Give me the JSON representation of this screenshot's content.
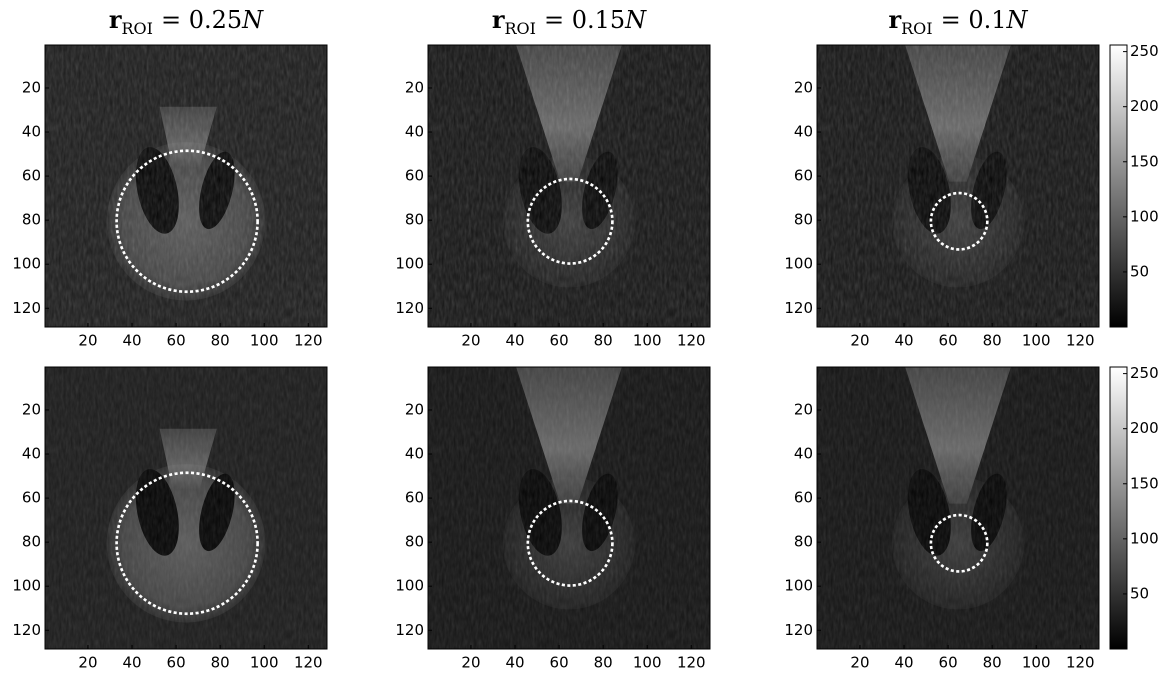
{
  "titles": [
    {
      "symbol": "r",
      "subscript": "ROI",
      "equals": "= 0.25",
      "variable": "N"
    },
    {
      "symbol": "r",
      "subscript": "ROI",
      "equals": "= 0.15",
      "variable": "N"
    },
    {
      "symbol": "r",
      "subscript": "ROI",
      "equals": "= 0.1",
      "variable": "N"
    }
  ],
  "axes": {
    "xlim": [
      0.5,
      128.5
    ],
    "ylim": [
      0.5,
      128.5
    ],
    "xticks": [
      20,
      40,
      60,
      80,
      100,
      120
    ],
    "yticks": [
      20,
      40,
      60,
      80,
      100,
      120
    ]
  },
  "colorbar": {
    "lim": [
      0,
      256
    ],
    "ticks": [
      50,
      100,
      150,
      200,
      250
    ]
  }
}
